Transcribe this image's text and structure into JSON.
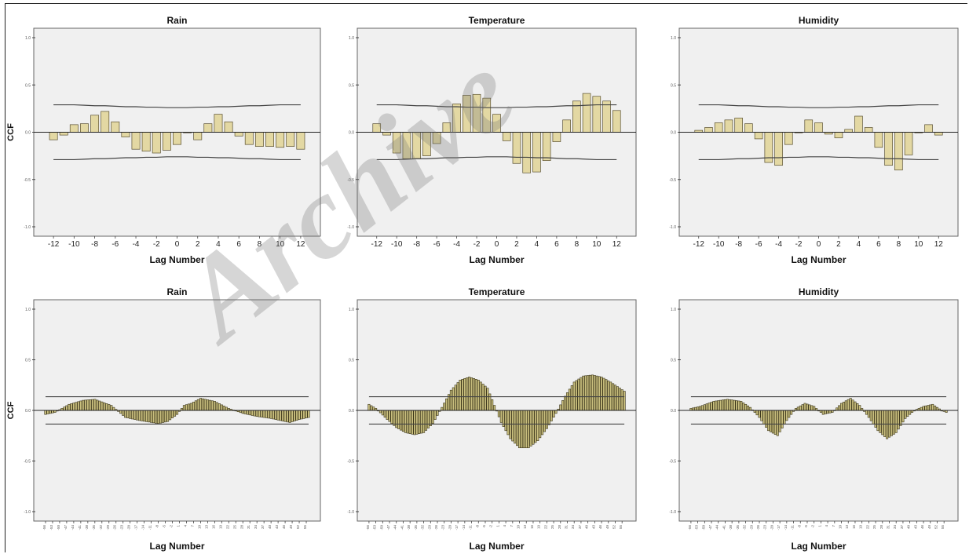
{
  "watermark": "Archive",
  "chart_data": [
    {
      "type": "bar",
      "title": "Rain",
      "xlabel": "Lag Number",
      "ylabel": "CCF",
      "xlim": [
        -13,
        13
      ],
      "ylim": [
        -1,
        1
      ],
      "yticks": [
        "1.0",
        "0.5",
        "0.0",
        "-0.5",
        "-1.0"
      ],
      "xtick_values": [
        -12,
        -10,
        -8,
        -6,
        -4,
        -2,
        0,
        2,
        4,
        6,
        8,
        10,
        12
      ],
      "x": [
        -12,
        -11,
        -10,
        -9,
        -8,
        -7,
        -6,
        -5,
        -4,
        -3,
        -2,
        -1,
        0,
        1,
        2,
        3,
        4,
        5,
        6,
        7,
        8,
        9,
        10,
        11,
        12
      ],
      "values": [
        -0.08,
        -0.03,
        0.08,
        0.09,
        0.18,
        0.22,
        0.11,
        -0.05,
        -0.18,
        -0.2,
        -0.22,
        -0.19,
        -0.13,
        0.0,
        -0.08,
        0.09,
        0.19,
        0.11,
        -0.04,
        -0.13,
        -0.15,
        -0.15,
        -0.16,
        -0.15,
        -0.18
      ],
      "upper_limit": [
        0.29,
        0.29,
        0.29,
        0.285,
        0.28,
        0.28,
        0.275,
        0.27,
        0.27,
        0.265,
        0.265,
        0.26,
        0.26,
        0.26,
        0.265,
        0.265,
        0.27,
        0.27,
        0.275,
        0.28,
        0.28,
        0.285,
        0.29,
        0.29,
        0.29
      ],
      "lower_limit": [
        -0.29,
        -0.29,
        -0.29,
        -0.285,
        -0.28,
        -0.28,
        -0.275,
        -0.27,
        -0.27,
        -0.265,
        -0.265,
        -0.26,
        -0.26,
        -0.26,
        -0.265,
        -0.265,
        -0.27,
        -0.27,
        -0.275,
        -0.28,
        -0.28,
        -0.285,
        -0.29,
        -0.29,
        -0.29
      ],
      "bar_color": "#e3d8a3",
      "background": "#f0f0f0"
    },
    {
      "type": "bar",
      "title": "Temperature",
      "xlabel": "Lag Number",
      "ylabel": "",
      "xlim": [
        -13,
        13
      ],
      "ylim": [
        -1,
        1
      ],
      "yticks": [
        "1.0",
        "0.5",
        "0.0",
        "-0.5",
        "-1.0"
      ],
      "xtick_values": [
        -12,
        -10,
        -8,
        -6,
        -4,
        -2,
        0,
        2,
        4,
        6,
        8,
        10,
        12
      ],
      "x": [
        -12,
        -11,
        -10,
        -9,
        -8,
        -7,
        -6,
        -5,
        -4,
        -3,
        -2,
        -1,
        0,
        1,
        2,
        3,
        4,
        5,
        6,
        7,
        8,
        9,
        10,
        11,
        12
      ],
      "values": [
        0.09,
        -0.03,
        -0.22,
        -0.28,
        -0.28,
        -0.25,
        -0.12,
        0.1,
        0.3,
        0.39,
        0.4,
        0.36,
        0.19,
        -0.09,
        -0.33,
        -0.43,
        -0.42,
        -0.3,
        -0.1,
        0.13,
        0.33,
        0.41,
        0.38,
        0.33,
        0.23
      ],
      "upper_limit": [
        0.29,
        0.29,
        0.29,
        0.285,
        0.28,
        0.28,
        0.275,
        0.27,
        0.27,
        0.265,
        0.265,
        0.26,
        0.26,
        0.26,
        0.265,
        0.265,
        0.27,
        0.27,
        0.275,
        0.28,
        0.28,
        0.285,
        0.29,
        0.29,
        0.29
      ],
      "lower_limit": [
        -0.29,
        -0.29,
        -0.29,
        -0.285,
        -0.28,
        -0.28,
        -0.275,
        -0.27,
        -0.27,
        -0.265,
        -0.265,
        -0.26,
        -0.26,
        -0.26,
        -0.265,
        -0.265,
        -0.27,
        -0.27,
        -0.275,
        -0.28,
        -0.28,
        -0.285,
        -0.29,
        -0.29,
        -0.29
      ],
      "bar_color": "#e3d8a3",
      "background": "#f0f0f0"
    },
    {
      "type": "bar",
      "title": "Humidity",
      "xlabel": "Lag Number",
      "ylabel": "",
      "xlim": [
        -13,
        13
      ],
      "ylim": [
        -1,
        1
      ],
      "yticks": [
        "1.0",
        "0.5",
        "0.0",
        "-0.5",
        "-1.0"
      ],
      "xtick_values": [
        -12,
        -10,
        -8,
        -6,
        -4,
        -2,
        0,
        2,
        4,
        6,
        8,
        10,
        12
      ],
      "x": [
        -12,
        -11,
        -10,
        -9,
        -8,
        -7,
        -6,
        -5,
        -4,
        -3,
        -2,
        -1,
        0,
        1,
        2,
        3,
        4,
        5,
        6,
        7,
        8,
        9,
        10,
        11,
        12
      ],
      "values": [
        0.02,
        0.05,
        0.1,
        0.13,
        0.15,
        0.09,
        -0.07,
        -0.32,
        -0.35,
        -0.13,
        0.0,
        0.13,
        0.1,
        -0.02,
        -0.06,
        0.03,
        0.17,
        0.05,
        -0.16,
        -0.35,
        -0.4,
        -0.24,
        0.0,
        0.08,
        -0.03
      ],
      "upper_limit": [
        0.29,
        0.29,
        0.29,
        0.285,
        0.28,
        0.28,
        0.275,
        0.27,
        0.27,
        0.265,
        0.265,
        0.26,
        0.26,
        0.26,
        0.265,
        0.265,
        0.27,
        0.27,
        0.275,
        0.28,
        0.28,
        0.285,
        0.29,
        0.29,
        0.29
      ],
      "lower_limit": [
        -0.29,
        -0.29,
        -0.29,
        -0.285,
        -0.28,
        -0.28,
        -0.275,
        -0.27,
        -0.27,
        -0.265,
        -0.265,
        -0.26,
        -0.26,
        -0.26,
        -0.265,
        -0.265,
        -0.27,
        -0.27,
        -0.275,
        -0.28,
        -0.28,
        -0.285,
        -0.29,
        -0.29,
        -0.29
      ],
      "bar_color": "#e3d8a3",
      "background": "#f0f0f0"
    },
    {
      "type": "bar",
      "title": "Rain",
      "xlabel": "Lag Number",
      "ylabel": "CCF",
      "xlim": [
        -57,
        57
      ],
      "ylim": [
        -1,
        1
      ],
      "yticks": [
        "1.0",
        "0.5",
        "0.0",
        "-0.5",
        "-1.0"
      ],
      "xtick_values": [
        -56,
        -53,
        -50,
        -47,
        -44,
        -41,
        -38,
        -35,
        -32,
        -29,
        -26,
        -23,
        -20,
        -17,
        -14,
        -11,
        -8,
        -5,
        -2,
        1,
        4,
        7,
        10,
        13,
        16,
        19,
        22,
        25,
        28,
        31,
        34,
        37,
        40,
        43,
        46,
        49,
        52,
        55
      ],
      "x_range": [
        -56,
        56
      ],
      "curve_x": [
        -56,
        -52,
        -46,
        -40,
        -35,
        -28,
        -22,
        -16,
        -8,
        -4,
        0,
        3,
        6,
        10,
        16,
        22,
        28,
        34,
        40,
        44,
        48,
        52,
        56
      ],
      "curve_y": [
        -0.04,
        -0.02,
        0.06,
        0.1,
        0.11,
        0.05,
        -0.07,
        -0.1,
        -0.13,
        -0.11,
        -0.04,
        0.05,
        0.07,
        0.12,
        0.09,
        0.02,
        -0.03,
        -0.06,
        -0.08,
        -0.1,
        -0.12,
        -0.09,
        -0.07
      ],
      "upper_limit": 0.135,
      "lower_limit": -0.135,
      "bar_color": "#c9bf7e",
      "background": "#f0f0f0"
    },
    {
      "type": "bar",
      "title": "Temperature",
      "xlabel": "Lag Number",
      "ylabel": "",
      "xlim": [
        -57,
        57
      ],
      "ylim": [
        -1,
        1
      ],
      "yticks": [
        "1.0",
        "0.5",
        "0.0",
        "-0.5",
        "-1.0"
      ],
      "xtick_values": [
        -56,
        -53,
        -50,
        -47,
        -44,
        -41,
        -38,
        -35,
        -32,
        -29,
        -26,
        -23,
        -20,
        -17,
        -14,
        -11,
        -8,
        -5,
        -2,
        1,
        4,
        7,
        10,
        13,
        16,
        19,
        22,
        25,
        28,
        31,
        34,
        37,
        40,
        43,
        46,
        49,
        52,
        55
      ],
      "x_range": [
        -56,
        56
      ],
      "curve_x": [
        -56,
        -53,
        -48,
        -44,
        -40,
        -36,
        -32,
        -28,
        -24,
        -20,
        -16,
        -12,
        -8,
        -4,
        -1,
        2,
        6,
        10,
        14,
        18,
        22,
        26,
        30,
        34,
        38,
        42,
        46,
        50,
        54,
        56
      ],
      "curve_y": [
        0.06,
        0.02,
        -0.09,
        -0.17,
        -0.22,
        -0.24,
        -0.22,
        -0.13,
        0.03,
        0.2,
        0.3,
        0.33,
        0.3,
        0.22,
        0.05,
        -0.12,
        -0.28,
        -0.37,
        -0.37,
        -0.3,
        -0.18,
        -0.03,
        0.14,
        0.28,
        0.34,
        0.35,
        0.33,
        0.28,
        0.22,
        0.19
      ],
      "upper_limit": 0.135,
      "lower_limit": -0.135,
      "bar_color": "#c9bf7e",
      "background": "#f0f0f0"
    },
    {
      "type": "bar",
      "title": "Humidity",
      "xlabel": "Lag Number",
      "ylabel": "",
      "xlim": [
        -57,
        57
      ],
      "ylim": [
        -1,
        1
      ],
      "yticks": [
        "1.0",
        "0.5",
        "0.0",
        "-0.5",
        "-1.0"
      ],
      "xtick_values": [
        -56,
        -53,
        -50,
        -47,
        -44,
        -41,
        -38,
        -35,
        -32,
        -29,
        -26,
        -23,
        -20,
        -17,
        -14,
        -11,
        -8,
        -5,
        -2,
        1,
        4,
        7,
        10,
        13,
        16,
        19,
        22,
        25,
        28,
        31,
        34,
        37,
        40,
        43,
        46,
        49,
        52,
        55
      ],
      "x_range": [
        -56,
        56
      ],
      "curve_x": [
        -56,
        -52,
        -46,
        -40,
        -34,
        -30,
        -26,
        -22,
        -18,
        -14,
        -10,
        -6,
        -2,
        2,
        6,
        10,
        14,
        18,
        22,
        26,
        30,
        34,
        38,
        42,
        46,
        50,
        54,
        56
      ],
      "curve_y": [
        0.02,
        0.04,
        0.09,
        0.11,
        0.09,
        0.03,
        -0.07,
        -0.2,
        -0.25,
        -0.1,
        0.02,
        0.07,
        0.04,
        -0.04,
        -0.02,
        0.07,
        0.12,
        0.05,
        -0.07,
        -0.2,
        -0.28,
        -0.22,
        -0.08,
        0.0,
        0.04,
        0.06,
        0.0,
        -0.02
      ],
      "upper_limit": 0.135,
      "lower_limit": -0.135,
      "bar_color": "#c9bf7e",
      "background": "#f0f0f0"
    }
  ]
}
